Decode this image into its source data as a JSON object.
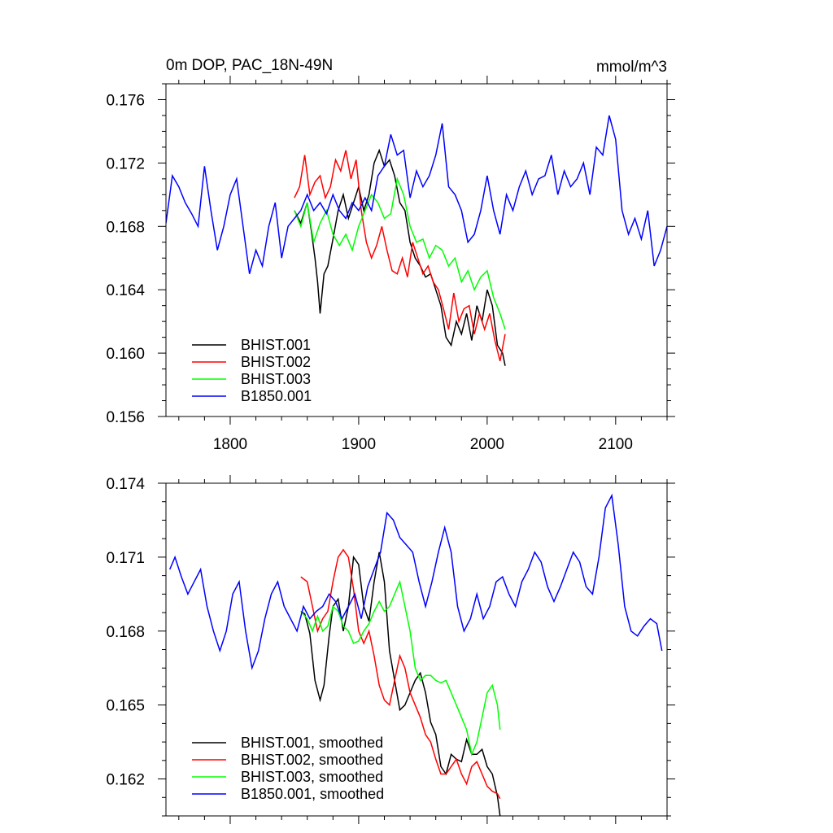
{
  "chart_data": [
    {
      "type": "line",
      "title_left": "0m DOP, PAC_18N-49N",
      "title_right": "mmol/m^3",
      "xlim": [
        1750,
        2140
      ],
      "ylim": [
        0.156,
        0.177
      ],
      "x_ticks": [
        1800,
        1900,
        2000,
        2100
      ],
      "x_tick_labels": [
        "1800",
        "1900",
        "2000",
        "2100"
      ],
      "y_ticks": [
        0.156,
        0.16,
        0.164,
        0.168,
        0.172,
        0.176
      ],
      "y_tick_labels": [
        "0.156",
        "0.160",
        "0.164",
        "0.168",
        "0.172",
        "0.176"
      ],
      "legend": {
        "placement": "bottom-left",
        "entries": [
          "BHIST.001",
          "BHIST.002",
          "BHIST.003",
          "B1850.001"
        ]
      },
      "series": [
        {
          "name": "BHIST.001",
          "color": "#000000",
          "x": [
            1850,
            1855,
            1860,
            1863,
            1866,
            1868,
            1870,
            1873,
            1876,
            1880,
            1884,
            1888,
            1892,
            1896,
            1900,
            1904,
            1908,
            1912,
            1916,
            1920,
            1924,
            1928,
            1932,
            1936,
            1940,
            1944,
            1948,
            1952,
            1956,
            1960,
            1964,
            1968,
            1972,
            1976,
            1980,
            1984,
            1988,
            1992,
            1996,
            2000,
            2004,
            2008,
            2012,
            2014
          ],
          "y": [
            0.169,
            0.1682,
            0.1695,
            0.1678,
            0.166,
            0.1645,
            0.1625,
            0.165,
            0.1655,
            0.1672,
            0.169,
            0.17,
            0.1685,
            0.1695,
            0.1705,
            0.169,
            0.17,
            0.172,
            0.1728,
            0.1718,
            0.1722,
            0.1712,
            0.1695,
            0.169,
            0.167,
            0.166,
            0.1655,
            0.1648,
            0.165,
            0.164,
            0.163,
            0.161,
            0.1605,
            0.162,
            0.1612,
            0.1625,
            0.1608,
            0.163,
            0.162,
            0.164,
            0.163,
            0.1605,
            0.16,
            0.1592
          ]
        },
        {
          "name": "BHIST.002",
          "color": "#ff0000",
          "x": [
            1850,
            1854,
            1858,
            1862,
            1866,
            1870,
            1874,
            1878,
            1882,
            1886,
            1890,
            1894,
            1898,
            1902,
            1906,
            1910,
            1914,
            1918,
            1922,
            1926,
            1930,
            1934,
            1938,
            1942,
            1946,
            1950,
            1954,
            1958,
            1962,
            1966,
            1970,
            1974,
            1978,
            1982,
            1986,
            1990,
            1994,
            1998,
            2002,
            2006,
            2010,
            2014
          ],
          "y": [
            0.1698,
            0.1705,
            0.1725,
            0.17,
            0.1708,
            0.1712,
            0.1698,
            0.1705,
            0.1722,
            0.1715,
            0.1728,
            0.171,
            0.1722,
            0.169,
            0.167,
            0.166,
            0.1668,
            0.168,
            0.1665,
            0.1652,
            0.165,
            0.166,
            0.1648,
            0.167,
            0.166,
            0.165,
            0.1655,
            0.1645,
            0.164,
            0.1628,
            0.1615,
            0.1638,
            0.162,
            0.1628,
            0.163,
            0.1612,
            0.1625,
            0.1615,
            0.1625,
            0.1608,
            0.1595,
            0.1612
          ]
        },
        {
          "name": "BHIST.003",
          "color": "#00ff00",
          "x": [
            1850,
            1855,
            1860,
            1865,
            1870,
            1875,
            1880,
            1885,
            1890,
            1895,
            1900,
            1905,
            1910,
            1915,
            1920,
            1925,
            1930,
            1935,
            1940,
            1945,
            1950,
            1955,
            1960,
            1965,
            1970,
            1975,
            1980,
            1985,
            1990,
            1995,
            2000,
            2005,
            2010,
            2014
          ],
          "y": [
            0.169,
            0.168,
            0.1695,
            0.167,
            0.1682,
            0.169,
            0.1675,
            0.1668,
            0.1675,
            0.1665,
            0.168,
            0.169,
            0.17,
            0.1695,
            0.1685,
            0.1688,
            0.171,
            0.17,
            0.168,
            0.167,
            0.1672,
            0.166,
            0.1668,
            0.1665,
            0.1655,
            0.166,
            0.1645,
            0.1652,
            0.164,
            0.1648,
            0.1652,
            0.1635,
            0.1625,
            0.1615
          ]
        },
        {
          "name": "B1850.001",
          "color": "#0000ff",
          "x": [
            1750,
            1755,
            1760,
            1765,
            1770,
            1775,
            1780,
            1785,
            1790,
            1795,
            1800,
            1805,
            1810,
            1815,
            1820,
            1825,
            1830,
            1835,
            1840,
            1845,
            1850,
            1855,
            1860,
            1865,
            1870,
            1875,
            1880,
            1885,
            1890,
            1895,
            1900,
            1905,
            1910,
            1915,
            1920,
            1925,
            1930,
            1935,
            1940,
            1945,
            1950,
            1955,
            1960,
            1965,
            1970,
            1975,
            1980,
            1985,
            1990,
            1995,
            2000,
            2005,
            2010,
            2015,
            2020,
            2025,
            2030,
            2035,
            2040,
            2045,
            2050,
            2055,
            2060,
            2065,
            2070,
            2075,
            2080,
            2085,
            2090,
            2095,
            2100,
            2105,
            2110,
            2115,
            2120,
            2125,
            2130,
            2135,
            2140
          ],
          "y": [
            0.1682,
            0.1712,
            0.1705,
            0.1695,
            0.1688,
            0.168,
            0.1718,
            0.169,
            0.1665,
            0.168,
            0.17,
            0.171,
            0.168,
            0.165,
            0.1665,
            0.1655,
            0.168,
            0.1695,
            0.166,
            0.168,
            0.1685,
            0.169,
            0.17,
            0.169,
            0.1695,
            0.1688,
            0.17,
            0.169,
            0.1685,
            0.1695,
            0.169,
            0.1698,
            0.169,
            0.1712,
            0.1718,
            0.1738,
            0.1725,
            0.1728,
            0.1698,
            0.1715,
            0.1705,
            0.1712,
            0.1725,
            0.1745,
            0.1705,
            0.17,
            0.169,
            0.167,
            0.1675,
            0.169,
            0.1712,
            0.169,
            0.1675,
            0.17,
            0.169,
            0.1705,
            0.1715,
            0.17,
            0.171,
            0.1712,
            0.1725,
            0.17,
            0.1715,
            0.1705,
            0.171,
            0.172,
            0.17,
            0.173,
            0.1725,
            0.175,
            0.1735,
            0.169,
            0.1675,
            0.1685,
            0.1672,
            0.169,
            0.1655,
            0.1665,
            0.168
          ]
        }
      ]
    },
    {
      "type": "line",
      "xlim": [
        1750,
        2140
      ],
      "ylim": [
        0.1605,
        0.174
      ],
      "x_ticks": [
        1800,
        1900,
        2000,
        2100
      ],
      "y_ticks": [
        0.162,
        0.165,
        0.168,
        0.171,
        0.174
      ],
      "y_tick_labels": [
        "0.162",
        "0.165",
        "0.168",
        "0.171",
        "0.174"
      ],
      "legend": {
        "placement": "bottom-left",
        "entries": [
          "BHIST.001, smoothed",
          "BHIST.002, smoothed",
          "BHIST.003, smoothed",
          "B1850.001, smoothed"
        ]
      },
      "series": [
        {
          "name": "BHIST.001, smoothed",
          "color": "#000000",
          "x": [
            1855,
            1858,
            1862,
            1866,
            1870,
            1873,
            1877,
            1880,
            1884,
            1888,
            1892,
            1896,
            1900,
            1904,
            1908,
            1912,
            1916,
            1920,
            1924,
            1928,
            1932,
            1936,
            1940,
            1944,
            1948,
            1952,
            1956,
            1960,
            1964,
            1968,
            1972,
            1976,
            1980,
            1984,
            1988,
            1992,
            1996,
            2000,
            2004,
            2008,
            2010
          ],
          "y": [
            0.1688,
            0.1687,
            0.1679,
            0.166,
            0.1652,
            0.1658,
            0.1678,
            0.169,
            0.1693,
            0.168,
            0.169,
            0.171,
            0.1707,
            0.169,
            0.1684,
            0.17,
            0.1712,
            0.17,
            0.1672,
            0.166,
            0.1648,
            0.165,
            0.1655,
            0.166,
            0.1663,
            0.1655,
            0.1643,
            0.1638,
            0.1625,
            0.1622,
            0.163,
            0.1628,
            0.1627,
            0.1636,
            0.163,
            0.163,
            0.1632,
            0.1625,
            0.1622,
            0.1613,
            0.1605
          ]
        },
        {
          "name": "BHIST.002, smoothed",
          "color": "#ff0000",
          "x": [
            1855,
            1860,
            1864,
            1868,
            1872,
            1876,
            1880,
            1884,
            1888,
            1892,
            1896,
            1900,
            1904,
            1908,
            1912,
            1916,
            1920,
            1924,
            1928,
            1932,
            1936,
            1940,
            1944,
            1948,
            1952,
            1956,
            1960,
            1964,
            1968,
            1972,
            1976,
            1980,
            1984,
            1988,
            1992,
            1996,
            2000,
            2004,
            2008,
            2010
          ],
          "y": [
            0.1702,
            0.17,
            0.169,
            0.168,
            0.1685,
            0.1688,
            0.17,
            0.171,
            0.1713,
            0.171,
            0.1697,
            0.168,
            0.1675,
            0.168,
            0.167,
            0.1658,
            0.1652,
            0.165,
            0.166,
            0.167,
            0.1665,
            0.1655,
            0.165,
            0.1645,
            0.1638,
            0.1635,
            0.1628,
            0.1622,
            0.1622,
            0.1625,
            0.1628,
            0.1622,
            0.1618,
            0.1625,
            0.1627,
            0.1622,
            0.1617,
            0.1615,
            0.1614,
            0.1612
          ]
        },
        {
          "name": "BHIST.003, smoothed",
          "color": "#00ff00",
          "x": [
            1855,
            1860,
            1864,
            1868,
            1872,
            1876,
            1880,
            1884,
            1888,
            1892,
            1896,
            1900,
            1904,
            1908,
            1912,
            1916,
            1920,
            1924,
            1928,
            1932,
            1936,
            1940,
            1944,
            1948,
            1952,
            1956,
            1960,
            1964,
            1968,
            1972,
            1976,
            1980,
            1984,
            1988,
            1992,
            1996,
            2000,
            2004,
            2008,
            2010
          ],
          "y": [
            0.1688,
            0.1685,
            0.168,
            0.1686,
            0.168,
            0.1682,
            0.169,
            0.1688,
            0.1682,
            0.168,
            0.1675,
            0.1676,
            0.168,
            0.1683,
            0.1688,
            0.1692,
            0.1688,
            0.169,
            0.1695,
            0.17,
            0.169,
            0.168,
            0.1665,
            0.166,
            0.1662,
            0.1662,
            0.166,
            0.1659,
            0.166,
            0.1655,
            0.165,
            0.1645,
            0.164,
            0.163,
            0.1635,
            0.1645,
            0.1655,
            0.1658,
            0.165,
            0.164
          ]
        },
        {
          "name": "B1850.001, smoothed",
          "color": "#0000ff",
          "x": [
            1753,
            1757,
            1762,
            1767,
            1772,
            1777,
            1782,
            1787,
            1792,
            1797,
            1802,
            1807,
            1812,
            1817,
            1822,
            1827,
            1832,
            1837,
            1842,
            1847,
            1852,
            1857,
            1862,
            1867,
            1872,
            1877,
            1882,
            1887,
            1892,
            1897,
            1902,
            1907,
            1912,
            1917,
            1922,
            1927,
            1932,
            1937,
            1942,
            1947,
            1952,
            1957,
            1962,
            1967,
            1972,
            1977,
            1982,
            1987,
            1992,
            1997,
            2002,
            2007,
            2012,
            2017,
            2022,
            2027,
            2032,
            2037,
            2042,
            2047,
            2052,
            2057,
            2062,
            2067,
            2072,
            2077,
            2082,
            2087,
            2092,
            2097,
            2102,
            2107,
            2112,
            2117,
            2122,
            2127,
            2132,
            2136
          ],
          "y": [
            0.1705,
            0.171,
            0.1702,
            0.1695,
            0.17,
            0.1705,
            0.169,
            0.168,
            0.1672,
            0.168,
            0.1695,
            0.17,
            0.168,
            0.1665,
            0.1672,
            0.1685,
            0.1695,
            0.17,
            0.169,
            0.1685,
            0.168,
            0.169,
            0.1685,
            0.1688,
            0.169,
            0.1695,
            0.1692,
            0.1685,
            0.169,
            0.1695,
            0.1685,
            0.1698,
            0.1705,
            0.1712,
            0.1728,
            0.1725,
            0.1718,
            0.1715,
            0.1712,
            0.17,
            0.169,
            0.17,
            0.1712,
            0.1722,
            0.1712,
            0.169,
            0.168,
            0.1685,
            0.1695,
            0.1685,
            0.169,
            0.17,
            0.1702,
            0.1695,
            0.169,
            0.17,
            0.1705,
            0.1712,
            0.1708,
            0.1698,
            0.1692,
            0.1698,
            0.1705,
            0.1712,
            0.1708,
            0.1698,
            0.1695,
            0.171,
            0.173,
            0.1735,
            0.1715,
            0.169,
            0.168,
            0.1678,
            0.1682,
            0.1685,
            0.1683,
            0.1672
          ]
        }
      ]
    }
  ]
}
